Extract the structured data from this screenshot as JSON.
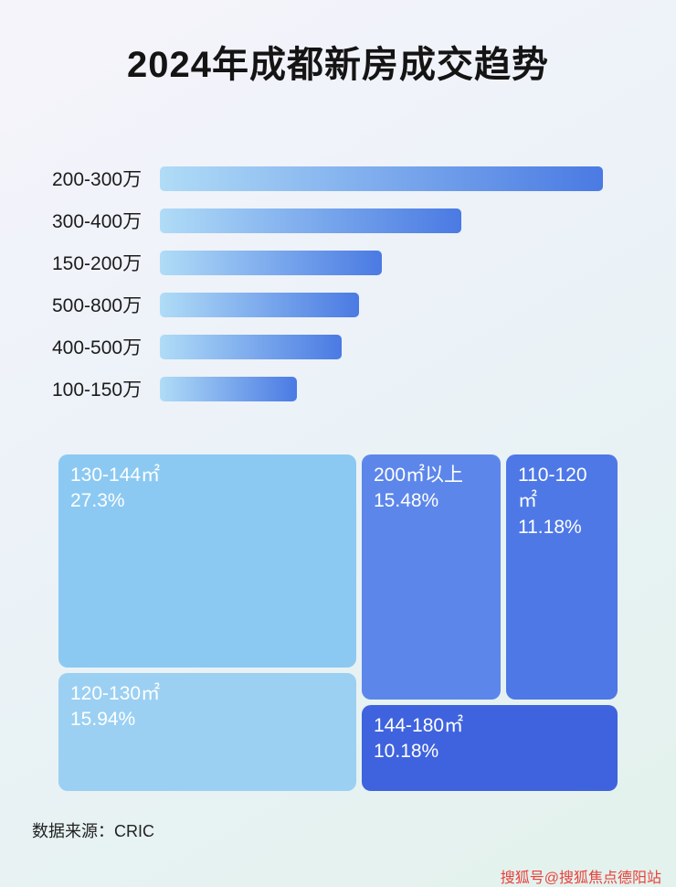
{
  "page": {
    "title": "2024年成都新房成交趋势",
    "source_label": "数据来源：CRIC",
    "watermark": "搜狐号@搜狐焦点德阳站"
  },
  "chart_data": [
    {
      "type": "bar",
      "orientation": "horizontal",
      "title": "2024年成都新房成交趋势",
      "categories": [
        "200-300万",
        "300-400万",
        "150-200万",
        "500-800万",
        "400-500万",
        "100-150万"
      ],
      "values": [
        100,
        68,
        50,
        45,
        41,
        31
      ],
      "value_note": "relative bar lengths (max = 100); no numeric axis shown in image",
      "bar_gradient": [
        "#b0dcf7",
        "#4a7ae3"
      ],
      "grid": false,
      "legend": false
    },
    {
      "type": "treemap",
      "title": "",
      "items": [
        {
          "label": "130-144㎡",
          "percent": "27.3%",
          "value": 27.3,
          "color": "#8bc9f2"
        },
        {
          "label": "120-130㎡",
          "percent": "15.94%",
          "value": 15.94,
          "color": "#9bd0f3"
        },
        {
          "label": "200㎡以上",
          "percent": "15.48%",
          "value": 15.48,
          "color": "#5c86ea"
        },
        {
          "label": "110-120㎡",
          "percent": "11.18%",
          "value": 11.18,
          "color": "#4e78e6"
        },
        {
          "label": "144-180㎡",
          "percent": "10.18%",
          "value": 10.18,
          "color": "#3f63de"
        }
      ]
    }
  ]
}
